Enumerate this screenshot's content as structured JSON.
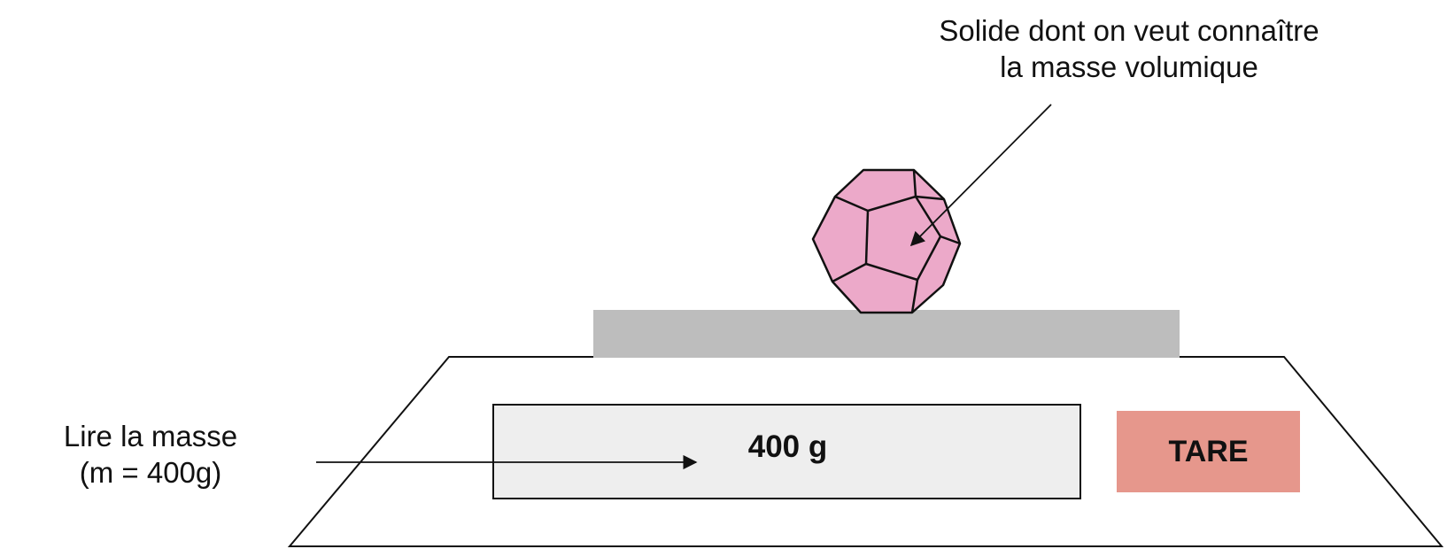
{
  "solid_label": {
    "line1": "Solide dont on veut connaître",
    "line2": "la masse volumique"
  },
  "mass_label": {
    "line1": "Lire la masse",
    "line2": "(m = 400g)"
  },
  "display": {
    "value": "400 g"
  },
  "tare_button": {
    "label": "TARE"
  },
  "colors": {
    "solid_fill": "#eca9c9",
    "plate": "#bdbdbd",
    "display_bg": "#eeeeee",
    "tare_bg": "#e6978c",
    "stroke": "#111111"
  }
}
